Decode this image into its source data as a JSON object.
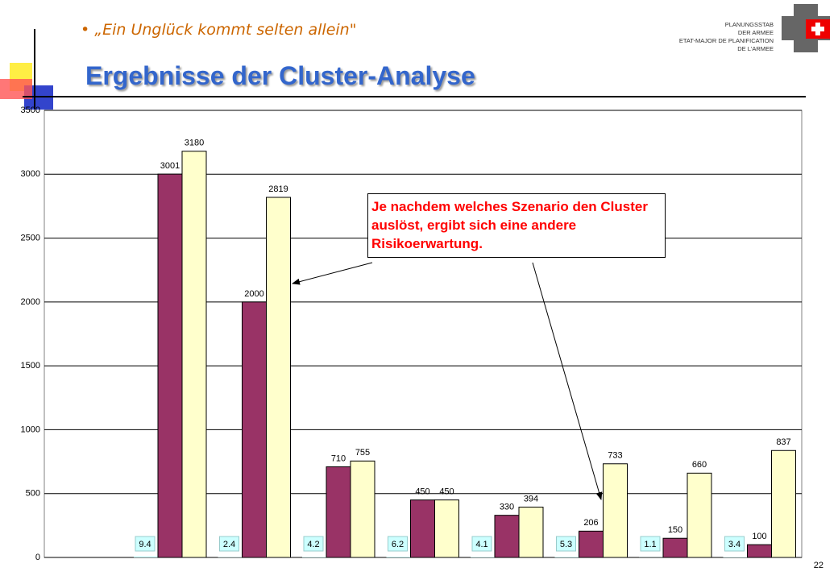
{
  "slide": {
    "bullet": "„Ein Unglück kommt selten allein\"",
    "title": "Ergebnisse der Cluster-Analyse",
    "org": [
      "PLANUNGSSTAB",
      "DER ARMEE",
      "ETAT-MAJOR DE PLANIFICATION",
      "DE L'ARMEE"
    ],
    "page": "22"
  },
  "chart_data": {
    "type": "bar",
    "series": [
      {
        "color": "#ccffff",
        "values": [
          9.4,
          2.4,
          4.2,
          6.2,
          4.1,
          5.3,
          1.1,
          3.4
        ]
      },
      {
        "color": "#993366",
        "values": [
          3001,
          2000,
          710,
          450,
          330,
          206,
          150,
          100
        ]
      },
      {
        "color": "#ffffcc",
        "values": [
          3180,
          2819,
          755,
          450,
          394,
          733,
          660,
          837
        ]
      }
    ],
    "ylim": [
      0,
      3500
    ],
    "yticks": [
      0,
      500,
      1000,
      1500,
      2000,
      2500,
      3000,
      3500
    ],
    "grid": true,
    "annotation": "Je nachdem welches Szenario den Cluster auslöst, ergibt sich eine andere Risikoerwartung."
  }
}
